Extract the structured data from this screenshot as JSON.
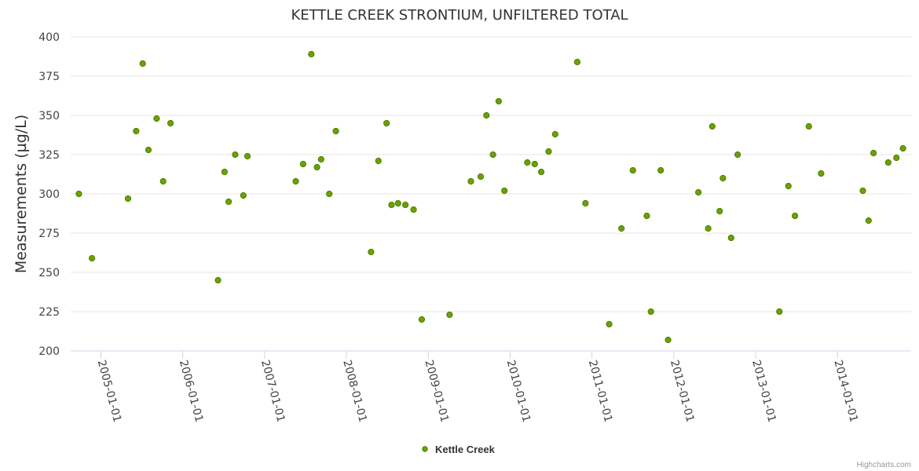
{
  "chart_data": {
    "type": "scatter",
    "title": "KETTLE CREEK STRONTIUM, UNFILTERED TOTAL",
    "xlabel": "",
    "ylabel": "Measurements (µg/L)",
    "ylim": [
      200,
      400
    ],
    "yticks": [
      200,
      225,
      250,
      275,
      300,
      325,
      350,
      375,
      400
    ],
    "xlim": [
      2004.63,
      2014.9
    ],
    "xticks": [
      {
        "value": 2005.0,
        "label": "2005-01-01"
      },
      {
        "value": 2006.0,
        "label": "2006-01-01"
      },
      {
        "value": 2007.0,
        "label": "2007-01-01"
      },
      {
        "value": 2008.0,
        "label": "2008-01-01"
      },
      {
        "value": 2009.0,
        "label": "2009-01-01"
      },
      {
        "value": 2010.0,
        "label": "2010-01-01"
      },
      {
        "value": 2011.0,
        "label": "2011-01-01"
      },
      {
        "value": 2012.0,
        "label": "2012-01-01"
      },
      {
        "value": 2013.0,
        "label": "2013-01-01"
      },
      {
        "value": 2014.0,
        "label": "2014-01-01"
      }
    ],
    "legend_position": "bottom-center",
    "series": [
      {
        "name": "Kettle Creek",
        "color": "#6aa300",
        "points": [
          {
            "x": 2004.73,
            "y": 300
          },
          {
            "x": 2004.89,
            "y": 259
          },
          {
            "x": 2005.33,
            "y": 297
          },
          {
            "x": 2005.43,
            "y": 340
          },
          {
            "x": 2005.51,
            "y": 383
          },
          {
            "x": 2005.58,
            "y": 328
          },
          {
            "x": 2005.68,
            "y": 348
          },
          {
            "x": 2005.76,
            "y": 308
          },
          {
            "x": 2005.85,
            "y": 345
          },
          {
            "x": 2006.43,
            "y": 245
          },
          {
            "x": 2006.51,
            "y": 314
          },
          {
            "x": 2006.56,
            "y": 295
          },
          {
            "x": 2006.64,
            "y": 325
          },
          {
            "x": 2006.74,
            "y": 299
          },
          {
            "x": 2006.79,
            "y": 324
          },
          {
            "x": 2007.38,
            "y": 308
          },
          {
            "x": 2007.47,
            "y": 319
          },
          {
            "x": 2007.57,
            "y": 389
          },
          {
            "x": 2007.64,
            "y": 317
          },
          {
            "x": 2007.69,
            "y": 322
          },
          {
            "x": 2007.79,
            "y": 300
          },
          {
            "x": 2007.87,
            "y": 340
          },
          {
            "x": 2008.3,
            "y": 263
          },
          {
            "x": 2008.39,
            "y": 321
          },
          {
            "x": 2008.49,
            "y": 345
          },
          {
            "x": 2008.55,
            "y": 293
          },
          {
            "x": 2008.63,
            "y": 294
          },
          {
            "x": 2008.72,
            "y": 293
          },
          {
            "x": 2008.82,
            "y": 290
          },
          {
            "x": 2008.92,
            "y": 220
          },
          {
            "x": 2009.26,
            "y": 223
          },
          {
            "x": 2009.52,
            "y": 308
          },
          {
            "x": 2009.64,
            "y": 311
          },
          {
            "x": 2009.71,
            "y": 350
          },
          {
            "x": 2009.79,
            "y": 325
          },
          {
            "x": 2009.86,
            "y": 359
          },
          {
            "x": 2009.93,
            "y": 302
          },
          {
            "x": 2010.21,
            "y": 320
          },
          {
            "x": 2010.3,
            "y": 319
          },
          {
            "x": 2010.38,
            "y": 314
          },
          {
            "x": 2010.47,
            "y": 327
          },
          {
            "x": 2010.55,
            "y": 338
          },
          {
            "x": 2010.82,
            "y": 384
          },
          {
            "x": 2010.92,
            "y": 294
          },
          {
            "x": 2011.21,
            "y": 217
          },
          {
            "x": 2011.36,
            "y": 278
          },
          {
            "x": 2011.5,
            "y": 315
          },
          {
            "x": 2011.67,
            "y": 286
          },
          {
            "x": 2011.72,
            "y": 225
          },
          {
            "x": 2011.84,
            "y": 315
          },
          {
            "x": 2011.93,
            "y": 207
          },
          {
            "x": 2012.3,
            "y": 301
          },
          {
            "x": 2012.42,
            "y": 278
          },
          {
            "x": 2012.47,
            "y": 343
          },
          {
            "x": 2012.56,
            "y": 289
          },
          {
            "x": 2012.6,
            "y": 310
          },
          {
            "x": 2012.7,
            "y": 272
          },
          {
            "x": 2012.78,
            "y": 325
          },
          {
            "x": 2013.29,
            "y": 225
          },
          {
            "x": 2013.4,
            "y": 305
          },
          {
            "x": 2013.48,
            "y": 286
          },
          {
            "x": 2013.65,
            "y": 343
          },
          {
            "x": 2013.8,
            "y": 313
          },
          {
            "x": 2014.31,
            "y": 302
          },
          {
            "x": 2014.38,
            "y": 283
          },
          {
            "x": 2014.44,
            "y": 326
          },
          {
            "x": 2014.62,
            "y": 320
          },
          {
            "x": 2014.72,
            "y": 323
          },
          {
            "x": 2014.8,
            "y": 329
          }
        ]
      }
    ]
  },
  "credits": "Highcharts.com"
}
